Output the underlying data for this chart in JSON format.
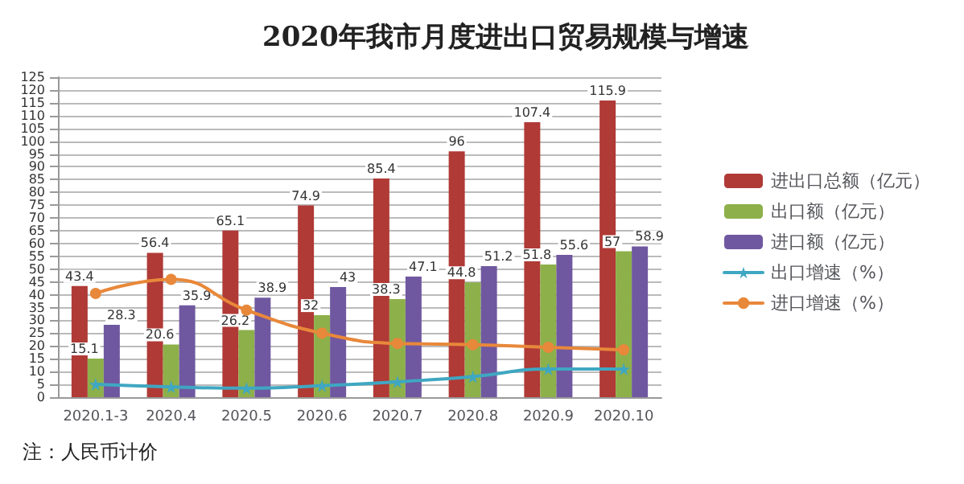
{
  "chart_data": {
    "type": "bar",
    "title": "2020年我市月度进出口贸易规模与增速",
    "categories": [
      "2020.1-3",
      "2020.4",
      "2020.5",
      "2020.6",
      "2020.7",
      "2020.8",
      "2020.9",
      "2020.10"
    ],
    "series": [
      {
        "name": "进出口总额（亿元）",
        "color": "#b03a36",
        "values": [
          43.4,
          56.4,
          65.1,
          74.9,
          85.4,
          96,
          107.4,
          115.9
        ],
        "value_labels": [
          "43.4",
          "56.4",
          "65.1",
          "74.9",
          "85.4",
          "96",
          "107.4",
          "115.9"
        ]
      },
      {
        "name": "出口额（亿元）",
        "color": "#8db04a",
        "values": [
          15.1,
          20.6,
          26.2,
          32,
          38.3,
          44.8,
          51.8,
          57
        ],
        "value_labels": [
          "15.1",
          "20.6",
          "26.2",
          "32",
          "38.3",
          "44.8",
          "51.8",
          "57"
        ]
      },
      {
        "name": "进口额（亿元）",
        "color": "#7058a0",
        "values": [
          28.3,
          35.9,
          38.9,
          43,
          47.1,
          51.2,
          55.6,
          58.9
        ],
        "value_labels": [
          "28.3",
          "35.9",
          "38.9",
          "43",
          "47.1",
          "51.2",
          "55.6",
          "58.9"
        ]
      },
      {
        "name": "出口增速（%）",
        "type": "line",
        "marker": "star",
        "color": "#3fa7c2",
        "values": [
          5,
          4,
          3.5,
          4.5,
          6,
          8,
          11,
          11
        ]
      },
      {
        "name": "进口增速（%）",
        "type": "line",
        "marker": "circle",
        "color": "#e8883a",
        "values": [
          40.5,
          46,
          34,
          25,
          21,
          20.5,
          19.5,
          18.5
        ]
      }
    ],
    "ylim": [
      0,
      125
    ],
    "yticks": [
      0,
      5,
      10,
      15,
      20,
      25,
      30,
      35,
      40,
      45,
      50,
      55,
      60,
      65,
      70,
      75,
      80,
      85,
      90,
      95,
      100,
      105,
      110,
      115,
      120,
      125
    ],
    "grid": "y",
    "legend": "right",
    "annotations": [
      "注：人民币计价"
    ]
  }
}
